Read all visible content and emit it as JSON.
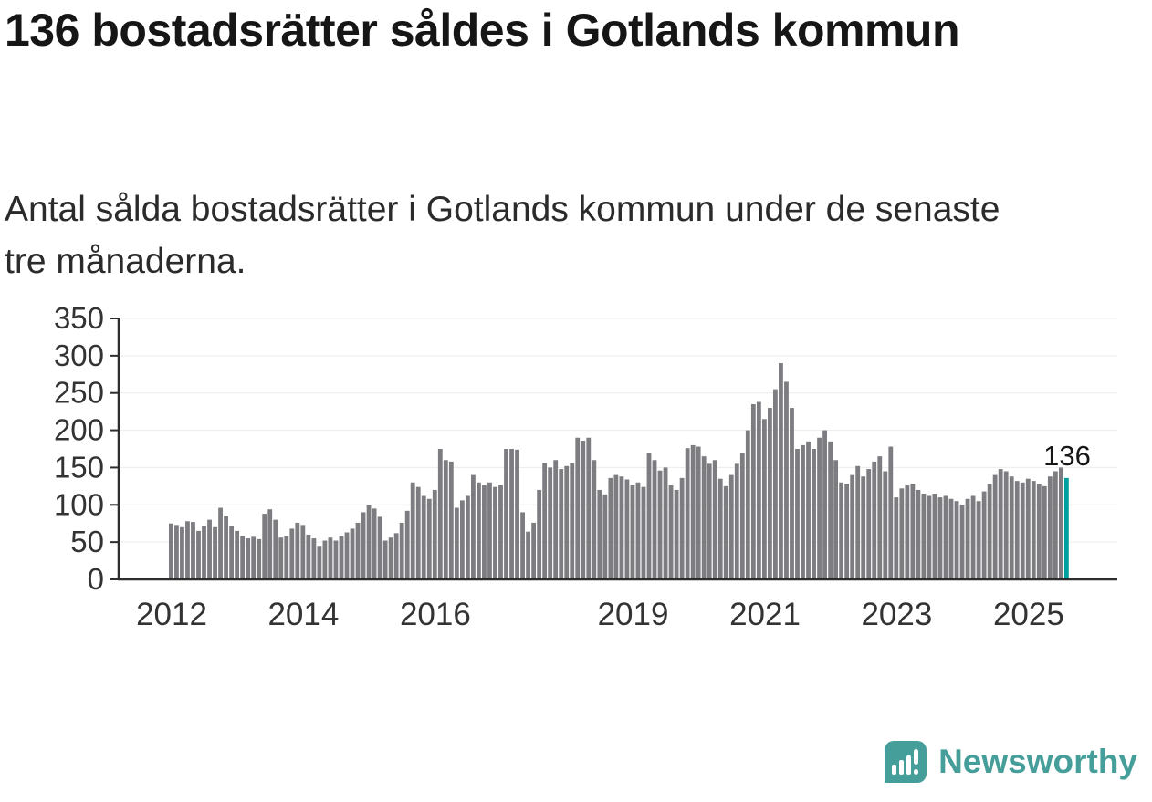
{
  "header": {
    "title": "136 bostadsrätter såldes i Gotlands kommun",
    "subtitle": "Antal sålda bostadsrätter i Gotlands kommun under de senaste tre månaderna."
  },
  "chart_data": {
    "type": "bar",
    "title": "136 bostadsrätter såldes i Gotlands kommun",
    "subtitle": "Antal sålda bostadsrätter i Gotlands kommun under de senaste tre månaderna.",
    "frequency": "monthly",
    "x_start": "2012-01",
    "x_end": "2025-08",
    "ylim": [
      0,
      350
    ],
    "yticks": [
      0,
      50,
      100,
      150,
      200,
      250,
      300,
      350
    ],
    "xticks": [
      {
        "label": "2012",
        "month_index": 0
      },
      {
        "label": "2014",
        "month_index": 24
      },
      {
        "label": "2016",
        "month_index": 48
      },
      {
        "label": "2019",
        "month_index": 84
      },
      {
        "label": "2021",
        "month_index": 108
      },
      {
        "label": "2023",
        "month_index": 132
      },
      {
        "label": "2025",
        "month_index": 156
      }
    ],
    "values": [
      75,
      73,
      70,
      78,
      77,
      65,
      72,
      80,
      70,
      96,
      85,
      72,
      65,
      58,
      55,
      57,
      54,
      88,
      94,
      80,
      56,
      58,
      68,
      76,
      73,
      60,
      55,
      45,
      52,
      56,
      52,
      58,
      63,
      68,
      76,
      90,
      100,
      95,
      84,
      52,
      56,
      62,
      76,
      92,
      130,
      124,
      112,
      108,
      120,
      175,
      160,
      158,
      96,
      106,
      112,
      140,
      130,
      126,
      130,
      124,
      126,
      175,
      175,
      174,
      90,
      64,
      76,
      120,
      156,
      150,
      160,
      148,
      152,
      156,
      190,
      186,
      190,
      160,
      120,
      114,
      136,
      140,
      138,
      134,
      126,
      130,
      124,
      170,
      160,
      146,
      150,
      126,
      120,
      136,
      176,
      180,
      178,
      165,
      155,
      160,
      135,
      125,
      140,
      155,
      170,
      200,
      235,
      238,
      215,
      230,
      255,
      290,
      265,
      230,
      175,
      180,
      185,
      175,
      190,
      200,
      185,
      160,
      130,
      128,
      140,
      152,
      138,
      148,
      158,
      165,
      145,
      178,
      110,
      122,
      126,
      128,
      120,
      115,
      112,
      115,
      110,
      112,
      108,
      105,
      100,
      108,
      112,
      105,
      118,
      128,
      140,
      148,
      145,
      138,
      132,
      130,
      135,
      132,
      128,
      125,
      138,
      145,
      150,
      136
    ],
    "highlight": {
      "position": "last",
      "value": 136,
      "label": "136",
      "color": "#00a0a0"
    },
    "bar_color": "#7c7c81",
    "axis_color": "#2e2e2e",
    "tick_label_color": "#333333",
    "annotation_color": "#161616",
    "grid": true,
    "grid_color": "#ececec",
    "legend": "none"
  },
  "footer": {
    "brand": "Newsworthy",
    "brand_color": "#459e99",
    "logo": "newsworthy-bars-exclamation"
  }
}
